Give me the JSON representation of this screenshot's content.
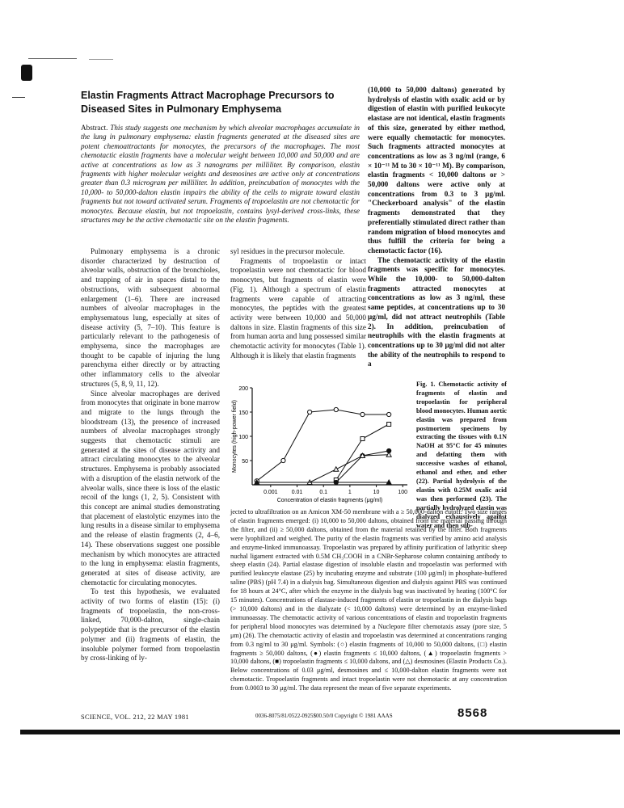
{
  "title": "Elastin Fragments Attract Macrophage Precursors to Diseased Sites in Pulmonary Emphysema",
  "abstract": {
    "lead": "Abstract.",
    "text": "This study suggests one mechanism by which alveolar macrophages accumulate in the lung in pulmonary emphysema: elastin fragments generated at the diseased sites are potent chemoattractants for monocytes, the precursors of the macrophages. The most chemotactic elastin fragments have a molecular weight between 10,000 and 50,000 and are active at concentrations as low as 3 nanograms per milliliter. By comparison, elastin fragments with higher molecular weights and desmosines are active only at concentrations greater than 0.3 microgram per milliliter. In addition, preincubation of monocytes with the 10,000- to 50,000-dalton elastin impairs the ability of the cells to migrate toward elastin fragments but not toward activated serum. Fragments of tropoelastin are not chemotactic for monocytes. Because elastin, but not tropoelastin, contains lysyl-derived cross-links, these structures may be the active chemotactic site on the elastin fragments."
  },
  "col1": [
    "Pulmonary emphysema is a chronic disorder characterized by destruction of alveolar walls, obstruction of the bronchioles, and trapping of air in spaces distal to the obstructions, with subsequent abnormal enlargement (1–6). There are increased numbers of alveolar macrophages in the emphysematous lung, especially at sites of disease activity (5, 7–10). This feature is particularly relevant to the pathogenesis of emphysema, since the macrophages are thought to be capable of injuring the lung parenchyma either directly or by attracting other inflammatory cells to the alveolar structures (5, 8, 9, 11, 12).",
    "Since alveolar macrophages are derived from monocytes that originate in bone marrow and migrate to the lungs through the bloodstream (13), the presence of increased numbers of alveolar macrophages strongly suggests that chemotactic stimuli are generated at the sites of disease activity and attract circulating monocytes to the alveolar structures. Emphysema is probably associated with a disruption of the elastin network of the alveolar walls, since there is loss of the elastic recoil of the lungs (1, 2, 5). Consistent with this concept are animal studies demonstrating that placement of elastolytic enzymes into the lung results in a disease similar to emphysema and the release of elastin fragments (2, 4–6, 14). These observations suggest one possible mechanism by which monocytes are attracted to the lung in emphysema: elastin fragments, generated at sites of disease activity, are chemotactic for circulating monocytes.",
    "To test this hypothesis, we evaluated activity of two forms of elastin (15): (i) fragments of tropoelastin, the non-cross-linked, 70,000-dalton, single-chain polypeptide that is the precursor of the elastin polymer and (ii) fragments of elastin, the insoluble polymer formed from tropoelastin by cross-linking of ly-"
  ],
  "col2": [
    "syl residues in the precursor molecule.",
    "Fragments of tropoelastin or intact tropoelastin were not chemotactic for blood monocytes, but fragments of elastin were (Fig. 1). Although a spectrum of elastin fragments were capable of attracting monocytes, the peptides with the greatest activity were between 10,000 and 50,000 daltons in size. Elastin fragments of this size from human aorta and lung possessed similar chemotactic activity for monocytes (Table 1). Although it is likely that elastin fragments"
  ],
  "col3": [
    "(10,000 to 50,000 daltons) generated by hydrolysis of elastin with oxalic acid or by digestion of elastin with purified leukocyte elastase are not identical, elastin fragments of this size, generated by either method, were equally chemotactic for monocytes. Such fragments attracted monocytes at concentrations as low as 3 ng/ml (range, 6 × 10⁻¹¹ M to 30 × 10⁻¹¹ M). By comparison, elastin fragments < 10,000 daltons or > 50,000 daltons were active only at concentrations from 0.3 to 3 μg/ml. \"Checkerboard analysis\" of the elastin fragments demonstrated that they preferentially stimulated direct rather than random migration of blood monocytes and thus fulfill the criteria for being a chemotactic factor (16).",
    "The chemotactic activity of the elastin fragments was specific for monocytes. While the 10,000- to 50,000-dalton fragments attracted monocytes at concentrations as low as 3 ng/ml, these same peptides, at concentrations up to 30 μg/ml, did not attract neutrophils (Table 2). In addition, preincubation of neutrophils with the elastin fragments at concentrations up to 30 μg/ml did not alter the ability of the neutrophils to respond to a"
  ],
  "figure_caption_right": "Fig. 1. Chemotactic activity of fragments of elastin and tropoelastin for peripheral blood monocytes. Human aortic elastin was prepared from postmortem specimens by extracting the tissues with 0.1N NaOH at 95°C for 45 minutes and defatting them with successive washes of ethanol, ethanol and ether, and ether (22). Partial hydrolysis of the elastin with 0.25M oxalic acid was then performed (23). The partially hydrolyzed elastin was dialyzed exhaustively against water and then sub-",
  "figure_caption_bottom": "jected to ultrafiltration on an Amicon XM-50 membrane with a ≥ 50,000-dalton cutoff. Two size ranges of elastin fragments emerged: (i) 10,000 to 50,000 daltons, obtained from the material passing through the filter, and (ii) ≥ 50,000 daltons, obtained from the material retained by the filter. Both fragments were lyophilized and weighed. The purity of the elastin fragments was verified by amino acid analysis and enzyme-linked immunoassay. Tropoelastin was prepared by affinity purification of lathyritic sheep nuchal ligament extracted with 0.5M CH₃COOH in a CNBr-Sepharose column containing antibody to sheep elastin (24). Partial elastase digestion of insoluble elastin and tropoelastin was performed with purified leukocyte elastase (25) by incubating enzyme and substrate (100 μg/ml) in phosphate-buffered saline (PBS) (pH 7.4) in a dialysis bag. Simultaneous digestion and dialysis against PBS was continued for 18 hours at 24°C, after which the enzyme in the dialysis bag was inactivated by heating (100°C for 15 minutes). Concentrations of elastase-induced fragments of elastin or tropoelastin in the dialysis bags (> 10,000 daltons) and in the dialyzate (< 10,000 daltons) were determined by an enzyme-linked immunoassay. The chemotactic activity of various concentrations of elastin and tropoelastin fragments for peripheral blood monocytes was determined by a Nuclepore filter chemotaxis assay (pore size, 5 μm) (26). The chemotactic activity of elastin and tropoelastin was determined at concentrations ranging from 0.3 ng/ml to 30 μg/ml. Symbols: (○) elastin fragments of 10,000 to 50,000 daltons, (□) elastin fragments ≥ 50,000 daltons, (●) elastin fragments ≤ 10,000 daltons, (▲) tropoelastin fragments > 10,000 daltons, (■) tropoelastin fragments ≤ 10,000 daltons, and (△) desmosines (Elastin Products Co.). Below concentrations of 0.03 μg/ml, desmosines and ≤ 10,000-dalton elastin fragments were not chemotactic. Tropoelastin fragments and intact tropoelastin were not chemotactic at any concentration from 0.0003 to 30 μg/ml. The data represent the mean of five separate experiments.",
  "footer": {
    "journal": "SCIENCE, VOL. 212, 22 MAY 1981",
    "copyright": "0036-8075/81/0522-0925$00.50/0   Copyright © 1981 AAAS",
    "page_stamp": "8568"
  },
  "chart_data": {
    "type": "line",
    "xlabel": "Concentration of elastin fragments (μg/ml)",
    "ylabel": "Monocytes (high-power field)",
    "x_tick_labels": [
      "0.001",
      "0.01",
      "0.1",
      "1",
      "10",
      "100"
    ],
    "y_ticks": [
      50,
      100,
      150,
      200
    ],
    "ylim": [
      0,
      200
    ],
    "xscale": "log",
    "series": [
      {
        "symbol": "open-circle",
        "x": [
          0.0003,
          0.003,
          0.03,
          0.3,
          3,
          30
        ],
        "y": [
          8,
          50,
          150,
          155,
          145,
          145
        ]
      },
      {
        "symbol": "open-square",
        "x": [
          0.3,
          3,
          30
        ],
        "y": [
          10,
          95,
          125
        ]
      },
      {
        "symbol": "filled-circle",
        "x": [
          0.3,
          3,
          30
        ],
        "y": [
          5,
          60,
          70
        ]
      },
      {
        "symbol": "open-triangle",
        "x": [
          0.03,
          0.3,
          3,
          30
        ],
        "y": [
          5,
          32,
          60,
          62
        ]
      },
      {
        "symbol": "filled-triangle",
        "x": [
          0.0003,
          30
        ],
        "y": [
          5,
          5
        ]
      }
    ]
  }
}
